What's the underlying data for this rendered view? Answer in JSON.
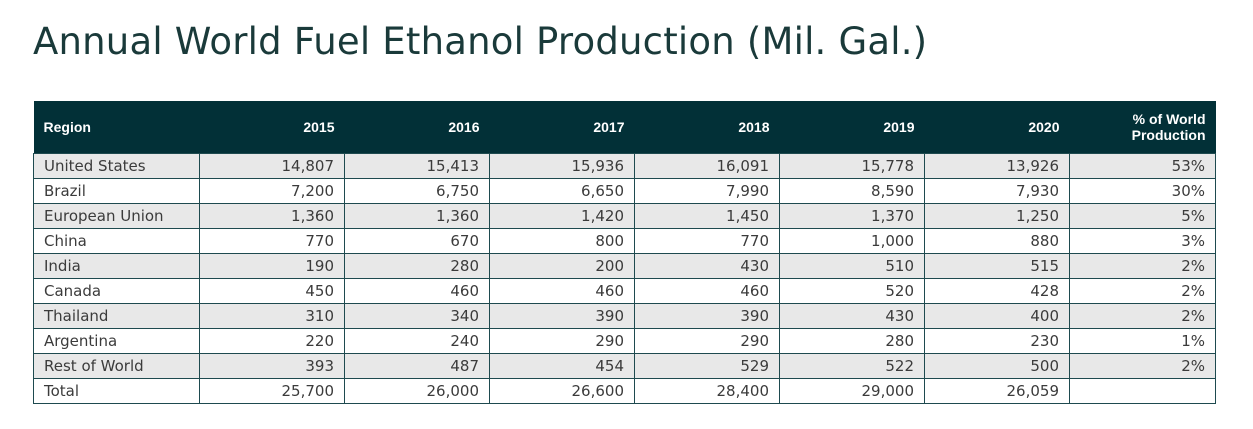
{
  "title": "Annual World Fuel Ethanol Production (Mil. Gal.)",
  "table": {
    "headers": [
      "Region",
      "2015",
      "2016",
      "2017",
      "2018",
      "2019",
      "2020",
      "% of World\nProduction"
    ],
    "rows": [
      [
        "United States",
        "14,807",
        "15,413",
        "15,936",
        "16,091",
        "15,778",
        "13,926",
        "53%"
      ],
      [
        "Brazil",
        "7,200",
        "6,750",
        "6,650",
        "7,990",
        "8,590",
        "7,930",
        "30%"
      ],
      [
        "European Union",
        "1,360",
        "1,360",
        "1,420",
        "1,450",
        "1,370",
        "1,250",
        "5%"
      ],
      [
        "China",
        "770",
        "670",
        "800",
        "770",
        "1,000",
        "880",
        "3%"
      ],
      [
        "India",
        "190",
        "280",
        "200",
        "430",
        "510",
        "515",
        "2%"
      ],
      [
        "Canada",
        "450",
        "460",
        "460",
        "460",
        "520",
        "428",
        "2%"
      ],
      [
        "Thailand",
        "310",
        "340",
        "390",
        "390",
        "430",
        "400",
        "2%"
      ],
      [
        "Argentina",
        "220",
        "240",
        "290",
        "290",
        "280",
        "230",
        "1%"
      ],
      [
        "Rest of World",
        "393",
        "487",
        "454",
        "529",
        "522",
        "500",
        "2%"
      ],
      [
        "Total",
        "25,700",
        "26,000",
        "26,600",
        "28,400",
        "29,000",
        "26,059",
        ""
      ]
    ]
  },
  "colors": {
    "header_bg": "#023037",
    "header_text": "#ffffff",
    "shaded_row": "#e8e8e8",
    "border": "#1e4a4f",
    "title_text": "#1a3a3a"
  }
}
